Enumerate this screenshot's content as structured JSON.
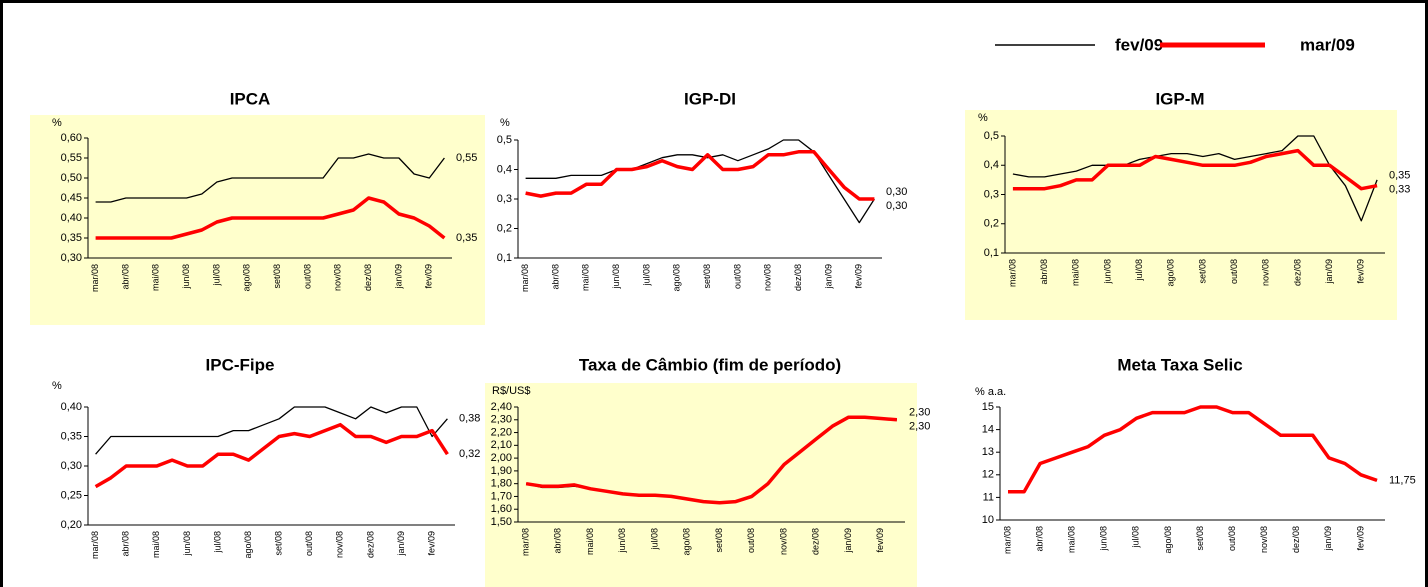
{
  "chart_data": [
    {
      "type": "line",
      "title": "IPCA",
      "y_label": "%",
      "background": "#ffffcc",
      "categories": [
        "mar/08",
        null,
        "abr/08",
        null,
        "mai/08",
        null,
        "jun/08",
        null,
        "jul/08",
        null,
        "ago/08",
        null,
        "set/08",
        null,
        "out/08",
        null,
        "nov/08",
        null,
        "dez/08",
        null,
        "jan/09",
        null,
        "fev/09",
        null
      ],
      "ylim": [
        0.3,
        0.6
      ],
      "yticks": [
        {
          "value": 0.3,
          "label": "0,30"
        },
        {
          "value": 0.35,
          "label": "0,35"
        },
        {
          "value": 0.4,
          "label": "0,40"
        },
        {
          "value": 0.45,
          "label": "0,45"
        },
        {
          "value": 0.5,
          "label": "0,50"
        },
        {
          "value": 0.55,
          "label": "0,55"
        },
        {
          "value": 0.6,
          "label": "0,60"
        }
      ],
      "series": [
        {
          "name": "fev/09",
          "color": "#000000",
          "values": [
            0.44,
            0.44,
            0.45,
            0.45,
            0.45,
            0.45,
            0.45,
            0.46,
            0.49,
            0.5,
            0.5,
            0.5,
            0.5,
            0.5,
            0.5,
            0.5,
            0.55,
            0.55,
            0.56,
            0.55,
            0.55,
            0.51,
            0.5,
            0.55
          ],
          "value_labels": [
            null,
            null,
            null,
            null,
            null,
            null,
            null,
            null,
            null,
            null,
            null,
            null,
            null,
            null,
            null,
            null,
            null,
            null,
            null,
            null,
            null,
            null,
            null,
            "0,55"
          ]
        },
        {
          "name": "mar/09",
          "color": "#ff0000",
          "values": [
            0.35,
            0.35,
            0.35,
            0.35,
            0.35,
            0.35,
            0.36,
            0.37,
            0.39,
            0.4,
            0.4,
            0.4,
            0.4,
            0.4,
            0.4,
            0.4,
            0.41,
            0.42,
            0.45,
            0.44,
            0.41,
            0.4,
            0.38,
            0.35
          ],
          "value_labels": [
            null,
            null,
            null,
            null,
            null,
            null,
            null,
            null,
            null,
            null,
            null,
            null,
            null,
            null,
            null,
            null,
            null,
            null,
            null,
            null,
            null,
            null,
            null,
            "0,35"
          ]
        }
      ]
    },
    {
      "type": "line",
      "title": "IGP-DI",
      "y_label": "%",
      "categories": [
        "mar/08",
        null,
        "abr/08",
        null,
        "mai/08",
        null,
        "jun/08",
        null,
        "jul/08",
        null,
        "ago/08",
        null,
        "set/08",
        null,
        "out/08",
        null,
        "nov/08",
        null,
        "dez/08",
        null,
        "jan/09",
        null,
        "fev/09",
        null
      ],
      "ylim": [
        0.1,
        0.5
      ],
      "yticks": [
        {
          "value": 0.1,
          "label": "0,1"
        },
        {
          "value": 0.2,
          "label": "0,2"
        },
        {
          "value": 0.3,
          "label": "0,3"
        },
        {
          "value": 0.4,
          "label": "0,4"
        },
        {
          "value": 0.5,
          "label": "0,5"
        }
      ],
      "series": [
        {
          "name": "fev/09",
          "color": "#000000",
          "values": [
            0.37,
            0.37,
            0.37,
            0.38,
            0.38,
            0.38,
            0.4,
            0.4,
            0.42,
            0.44,
            0.45,
            0.45,
            0.44,
            0.45,
            0.43,
            0.45,
            0.47,
            0.5,
            0.5,
            0.46,
            0.38,
            0.3,
            0.22,
            0.3
          ],
          "value_labels": [
            null,
            null,
            null,
            null,
            null,
            null,
            null,
            null,
            null,
            null,
            null,
            null,
            null,
            null,
            null,
            null,
            null,
            null,
            null,
            null,
            null,
            null,
            null,
            "0,30"
          ]
        },
        {
          "name": "mar/09",
          "color": "#ff0000",
          "values": [
            0.32,
            0.31,
            0.32,
            0.32,
            0.35,
            0.35,
            0.4,
            0.4,
            0.41,
            0.43,
            0.41,
            0.4,
            0.45,
            0.4,
            0.4,
            0.41,
            0.45,
            0.45,
            0.46,
            0.46,
            0.4,
            0.34,
            0.3,
            0.3
          ],
          "value_labels": [
            null,
            null,
            null,
            null,
            null,
            null,
            null,
            null,
            null,
            null,
            null,
            null,
            null,
            null,
            null,
            null,
            null,
            null,
            null,
            null,
            null,
            null,
            null,
            "0,30"
          ]
        }
      ]
    },
    {
      "type": "line",
      "title": "IGP-M",
      "y_label": "%",
      "background": "#ffffcc",
      "categories": [
        "mar/08",
        null,
        "abr/08",
        null,
        "mai/08",
        null,
        "jun/08",
        null,
        "jul/08",
        null,
        "ago/08",
        null,
        "set/08",
        null,
        "out/08",
        null,
        "nov/08",
        null,
        "dez/08",
        null,
        "jan/09",
        null,
        "fev/09",
        null
      ],
      "ylim": [
        0.1,
        0.5
      ],
      "yticks": [
        {
          "value": 0.1,
          "label": "0,1"
        },
        {
          "value": 0.2,
          "label": "0,2"
        },
        {
          "value": 0.3,
          "label": "0,3"
        },
        {
          "value": 0.4,
          "label": "0,4"
        },
        {
          "value": 0.5,
          "label": "0,5"
        }
      ],
      "series": [
        {
          "name": "fev/09",
          "color": "#000000",
          "values": [
            0.37,
            0.36,
            0.36,
            0.37,
            0.38,
            0.4,
            0.4,
            0.4,
            0.42,
            0.43,
            0.44,
            0.44,
            0.43,
            0.44,
            0.42,
            0.43,
            0.44,
            0.45,
            0.5,
            0.5,
            0.4,
            0.33,
            0.21,
            0.35
          ],
          "value_labels": [
            null,
            null,
            null,
            null,
            null,
            null,
            null,
            null,
            null,
            null,
            null,
            null,
            null,
            null,
            null,
            null,
            null,
            null,
            null,
            null,
            null,
            null,
            null,
            "0,35"
          ]
        },
        {
          "name": "mar/09",
          "color": "#ff0000",
          "values": [
            0.32,
            0.32,
            0.32,
            0.33,
            0.35,
            0.35,
            0.4,
            0.4,
            0.4,
            0.43,
            0.42,
            0.41,
            0.4,
            0.4,
            0.4,
            0.41,
            0.43,
            0.44,
            0.45,
            0.4,
            0.4,
            0.36,
            0.32,
            0.33
          ],
          "value_labels": [
            null,
            null,
            null,
            null,
            null,
            null,
            null,
            null,
            null,
            null,
            null,
            null,
            null,
            null,
            null,
            null,
            null,
            null,
            null,
            null,
            null,
            null,
            null,
            "0,33"
          ]
        }
      ]
    },
    {
      "type": "line",
      "title": "IPC-Fipe",
      "y_label": "%",
      "categories": [
        "mar/08",
        null,
        "abr/08",
        null,
        "mai/08",
        null,
        "jun/08",
        null,
        "jul/08",
        null,
        "ago/08",
        null,
        "set/08",
        null,
        "out/08",
        null,
        "nov/08",
        null,
        "dez/08",
        null,
        "jan/09",
        null,
        "fev/09",
        null
      ],
      "ylim": [
        0.2,
        0.4
      ],
      "yticks": [
        {
          "value": 0.2,
          "label": "0,20"
        },
        {
          "value": 0.25,
          "label": "0,25"
        },
        {
          "value": 0.3,
          "label": "0,30"
        },
        {
          "value": 0.35,
          "label": "0,35"
        },
        {
          "value": 0.4,
          "label": "0,40"
        }
      ],
      "series": [
        {
          "name": "fev/09",
          "color": "#000000",
          "values": [
            0.32,
            0.35,
            0.35,
            0.35,
            0.35,
            0.35,
            0.35,
            0.35,
            0.35,
            0.36,
            0.36,
            0.37,
            0.38,
            0.4,
            0.4,
            0.4,
            0.39,
            0.38,
            0.4,
            0.39,
            0.4,
            0.4,
            0.35,
            0.38
          ],
          "value_labels": [
            null,
            null,
            null,
            null,
            null,
            null,
            null,
            null,
            null,
            null,
            null,
            null,
            null,
            null,
            null,
            null,
            null,
            null,
            null,
            null,
            null,
            null,
            null,
            "0,38"
          ]
        },
        {
          "name": "mar/09",
          "color": "#ff0000",
          "values": [
            0.265,
            0.28,
            0.3,
            0.3,
            0.3,
            0.31,
            0.3,
            0.3,
            0.32,
            0.32,
            0.31,
            0.33,
            0.35,
            0.355,
            0.35,
            0.36,
            0.37,
            0.35,
            0.35,
            0.34,
            0.35,
            0.35,
            0.36,
            0.32
          ],
          "value_labels": [
            null,
            null,
            null,
            null,
            null,
            null,
            null,
            null,
            null,
            null,
            null,
            null,
            null,
            null,
            null,
            null,
            null,
            null,
            null,
            null,
            null,
            null,
            null,
            "0,32"
          ]
        }
      ]
    },
    {
      "type": "line",
      "title": "Taxa de Câmbio (fim de período)",
      "y_label": "R$/US$",
      "background": "#ffffcc",
      "categories": [
        "mar/08",
        null,
        "abr/08",
        null,
        "mai/08",
        null,
        "jun/08",
        null,
        "jul/08",
        null,
        "ago/08",
        null,
        "set/08",
        null,
        "out/08",
        null,
        "nov/08",
        null,
        "dez/08",
        null,
        "jan/09",
        null,
        "fev/09",
        null
      ],
      "ylim": [
        1.5,
        2.4
      ],
      "yticks": [
        {
          "value": 1.5,
          "label": "1,50"
        },
        {
          "value": 1.6,
          "label": "1,60"
        },
        {
          "value": 1.7,
          "label": "1,70"
        },
        {
          "value": 1.8,
          "label": "1,80"
        },
        {
          "value": 1.9,
          "label": "1,90"
        },
        {
          "value": 2.0,
          "label": "2,00"
        },
        {
          "value": 2.1,
          "label": "2,10"
        },
        {
          "value": 2.2,
          "label": "2,20"
        },
        {
          "value": 2.3,
          "label": "2,30"
        },
        {
          "value": 2.4,
          "label": "2,40"
        }
      ],
      "series": [
        {
          "name": "fev/09",
          "color": "#000000",
          "values": [
            1.8,
            1.77,
            1.77,
            1.78,
            1.76,
            1.74,
            1.72,
            1.71,
            1.71,
            1.7,
            1.68,
            1.66,
            1.65,
            1.66,
            1.7,
            1.8,
            1.95,
            2.05,
            2.15,
            2.25,
            2.32,
            2.32,
            2.31,
            2.3
          ],
          "value_labels": [
            null,
            null,
            null,
            null,
            null,
            null,
            null,
            null,
            null,
            null,
            null,
            null,
            null,
            null,
            null,
            null,
            null,
            null,
            null,
            null,
            null,
            null,
            null,
            "2,30"
          ]
        },
        {
          "name": "mar/09",
          "color": "#ff0000",
          "values": [
            1.8,
            1.78,
            1.78,
            1.79,
            1.76,
            1.74,
            1.72,
            1.71,
            1.71,
            1.7,
            1.68,
            1.66,
            1.65,
            1.66,
            1.7,
            1.8,
            1.95,
            2.05,
            2.15,
            2.25,
            2.32,
            2.32,
            2.31,
            2.3
          ],
          "value_labels": [
            null,
            null,
            null,
            null,
            null,
            null,
            null,
            null,
            null,
            null,
            null,
            null,
            null,
            null,
            null,
            null,
            null,
            null,
            null,
            null,
            null,
            null,
            null,
            "2,30"
          ]
        }
      ]
    },
    {
      "type": "line",
      "title": "Meta Taxa Selic",
      "y_label": "% a.a.",
      "categories": [
        "mar/08",
        null,
        "abr/08",
        null,
        "mai/08",
        null,
        "jun/08",
        null,
        "jul/08",
        null,
        "ago/08",
        null,
        "set/08",
        null,
        "out/08",
        null,
        "nov/08",
        null,
        "dez/08",
        null,
        "jan/09",
        null,
        "fev/09",
        null
      ],
      "ylim": [
        10,
        15
      ],
      "yticks": [
        10,
        11,
        12,
        13,
        14,
        15
      ],
      "series": [
        {
          "name": "fev/09",
          "color": "#000000",
          "values": [
            11.25,
            11.25,
            12.5,
            12.75,
            13.0,
            13.25,
            13.75,
            14.0,
            14.5,
            14.75,
            14.75,
            14.75,
            15,
            15,
            14.75,
            14.75,
            14.25,
            13.75,
            13.75,
            13.75,
            12.75,
            12.5,
            12.0,
            11.75
          ]
        },
        {
          "name": "mar/09",
          "color": "#ff0000",
          "values": [
            11.25,
            11.25,
            12.5,
            12.75,
            13.0,
            13.25,
            13.75,
            14.0,
            14.5,
            14.75,
            14.75,
            14.75,
            15,
            15,
            14.75,
            14.75,
            14.25,
            13.75,
            13.75,
            13.75,
            12.75,
            12.5,
            12.0,
            11.75
          ],
          "value_labels": [
            null,
            null,
            null,
            null,
            null,
            null,
            null,
            null,
            null,
            null,
            null,
            null,
            null,
            null,
            null,
            null,
            null,
            null,
            null,
            null,
            null,
            null,
            null,
            "11,75"
          ]
        }
      ]
    }
  ]
}
